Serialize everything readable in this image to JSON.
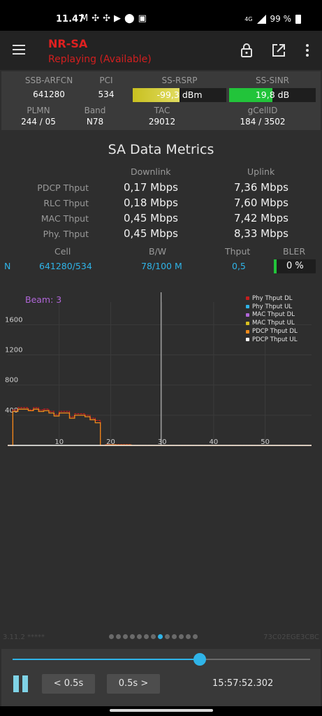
{
  "status_bar": {
    "time": "11.47",
    "left_icons": [
      "M",
      "✣",
      "✣",
      "▶",
      "⬤",
      "▣"
    ],
    "network": "4G",
    "battery": "99 %"
  },
  "app_bar": {
    "title": "NR-SA",
    "subtitle": "Replaying (Available)",
    "icons": [
      "menu-icon",
      "lock-icon",
      "open-external-icon",
      "more-vert-icon"
    ]
  },
  "metrics": {
    "ssb_arfcn": {
      "label": "SSB-ARFCN",
      "value": "641280"
    },
    "pci": {
      "label": "PCI",
      "value": "534"
    },
    "ss_rsrp": {
      "label": "SS-RSRP",
      "value": "-99,3",
      "unit": "dBm",
      "fraction": 0.5,
      "color": "#c9c020"
    },
    "ss_sinr": {
      "label": "SS-SINR",
      "value": "19,8 dB",
      "fraction": 0.5,
      "color": "#22c43a"
    },
    "plmn": {
      "label": "PLMN",
      "value": "244 / 05"
    },
    "band": {
      "label": "Band",
      "value": "N78"
    },
    "tac": {
      "label": "TAC",
      "value": "29012"
    },
    "gcellid": {
      "label": "gCellID",
      "value": "184 / 3502"
    }
  },
  "sa": {
    "title": "SA Data Metrics",
    "downlink_label": "Downlink",
    "uplink_label": "Uplink",
    "rows": [
      {
        "label": "PDCP Thput",
        "dl": "0,17 Mbps",
        "ul": "7,36 Mbps"
      },
      {
        "label": "RLC Thput",
        "dl": "0,18 Mbps",
        "ul": "7,60 Mbps"
      },
      {
        "label": "MAC Thput",
        "dl": "0,45 Mbps",
        "ul": "7,42 Mbps"
      },
      {
        "label": "Phy. Thput",
        "dl": "0,45 Mbps",
        "ul": "8,33 Mbps"
      }
    ],
    "cell_header": "Cell",
    "bw_header": "B/W",
    "thput_header": "Thput",
    "bler_header": "BLER",
    "cell_row": {
      "prefix": "N",
      "cell": "641280/534",
      "bw": "78/100 M",
      "thput": "0,5",
      "bler": "0 %"
    }
  },
  "chart_data": {
    "type": "line",
    "annotation": "Beam: 3",
    "x_ticks": [
      "10",
      "20",
      "30",
      "40",
      "50"
    ],
    "y_ticks": [
      "400",
      "800",
      "1200",
      "1600"
    ],
    "xlim": [
      0,
      59
    ],
    "ylim": [
      0,
      1900
    ],
    "cursor_x": 29.8,
    "grid": true,
    "legend_position": "top-right",
    "series": [
      {
        "name": "Phy Thput DL",
        "color": "#c41e1e",
        "x": [
          0,
          1,
          2,
          3,
          4,
          5,
          6,
          7,
          8,
          9,
          10,
          11,
          12,
          13,
          14,
          15,
          16,
          17,
          18,
          19,
          20,
          21,
          22,
          23,
          24,
          25,
          26,
          27,
          28,
          29,
          30,
          31,
          32,
          33,
          34,
          35,
          36,
          37,
          38,
          39,
          40,
          41,
          42,
          43,
          44,
          45,
          46,
          47,
          48,
          49,
          50,
          51,
          52,
          53,
          54,
          55,
          56,
          57,
          58,
          59
        ],
        "values": [
          0,
          470,
          500,
          500,
          470,
          500,
          470,
          480,
          450,
          410,
          450,
          450,
          380,
          420,
          420,
          400,
          360,
          330,
          0,
          10,
          10,
          10,
          10,
          10,
          0,
          0,
          0,
          0,
          0,
          0,
          0,
          0,
          0,
          0,
          0,
          0,
          0,
          0,
          0,
          0,
          0,
          0,
          0,
          0,
          0,
          0,
          0,
          0,
          0,
          0,
          0,
          0,
          0,
          0,
          0,
          0,
          0,
          0,
          0,
          0
        ]
      },
      {
        "name": "Phy Thput UL",
        "color": "#2fb4e8",
        "x": [
          0,
          59
        ],
        "values": [
          0,
          0
        ]
      },
      {
        "name": "MAC Thput DL",
        "color": "#b066d8",
        "x": [
          0,
          59
        ],
        "values": [
          0,
          0
        ]
      },
      {
        "name": "MAC Thput UL",
        "color": "#d8c020",
        "x": [
          0,
          59
        ],
        "values": [
          0,
          0
        ]
      },
      {
        "name": "PDCP Thput DL",
        "color": "#f08a1a",
        "x": [
          0,
          1,
          2,
          3,
          4,
          5,
          6,
          7,
          8,
          9,
          10,
          11,
          12,
          13,
          14,
          15,
          16,
          17,
          18,
          19,
          20,
          21,
          22,
          23,
          24,
          25,
          26,
          27,
          28,
          29,
          30,
          31,
          32,
          33,
          34,
          35,
          36,
          37,
          38,
          39,
          40,
          41,
          42,
          43,
          44,
          45,
          46,
          47,
          48,
          49,
          50,
          51,
          52,
          53,
          54,
          55,
          56,
          57,
          58,
          59
        ],
        "values": [
          0,
          450,
          480,
          480,
          460,
          480,
          450,
          460,
          430,
          390,
          430,
          430,
          360,
          400,
          400,
          380,
          340,
          300,
          0,
          5,
          8,
          5,
          5,
          5,
          0,
          0,
          0,
          0,
          0,
          0,
          0,
          0,
          0,
          0,
          0,
          0,
          0,
          0,
          0,
          0,
          0,
          0,
          0,
          0,
          0,
          0,
          0,
          0,
          0,
          0,
          0,
          0,
          0,
          0,
          0,
          0,
          0,
          0,
          0,
          0
        ]
      },
      {
        "name": "PDCP Thput UL",
        "color": "#ffffff",
        "x": [
          0,
          59
        ],
        "values": [
          0,
          0
        ]
      }
    ]
  },
  "footer": {
    "left": "3.11.2 *****",
    "right": "73C02EGE3CBC",
    "dots": 13,
    "active_dot": 7
  },
  "player": {
    "progress": 0.63,
    "back_label": "< 0.5s",
    "forward_label": "0.5s >",
    "timestamp": "15:57:52.302"
  }
}
